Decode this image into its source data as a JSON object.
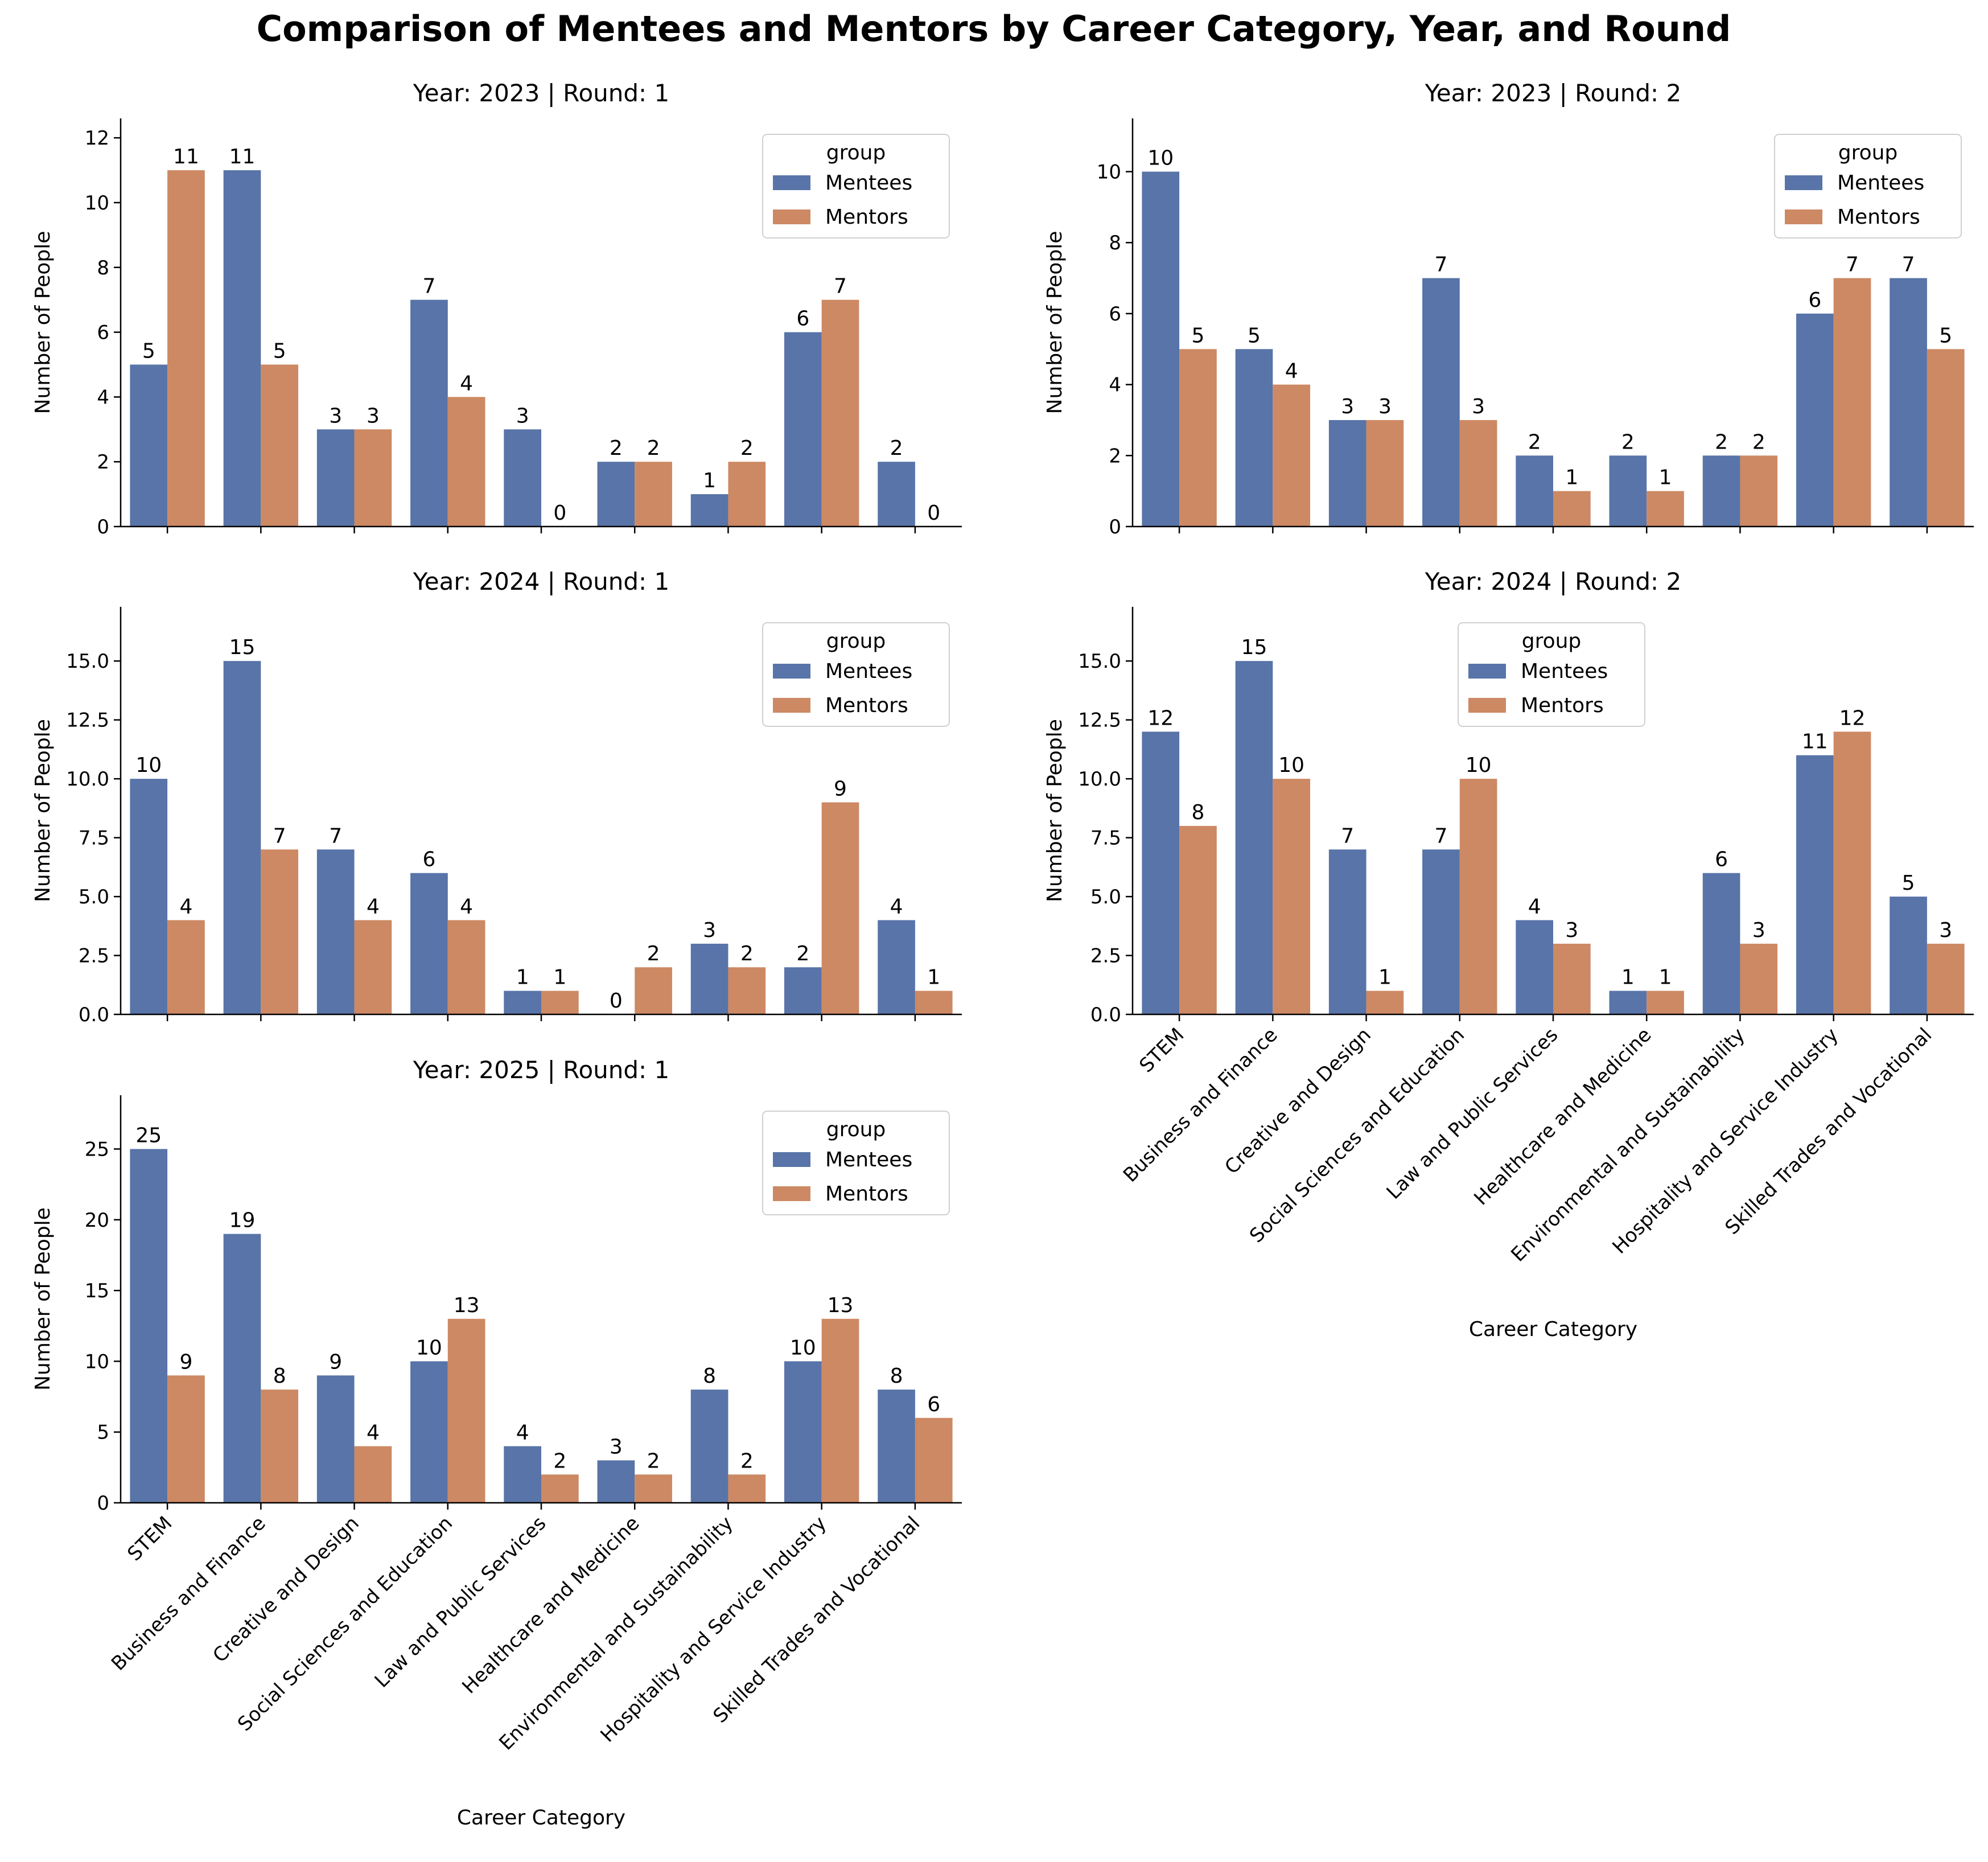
{
  "figure_title": "Comparison of Mentees and Mentors by Career Category, Year, and Round",
  "colors": {
    "Mentees": "#5874a8",
    "Mentors": "#cd8963"
  },
  "chart_data": [
    {
      "type": "bar",
      "title": "Year: 2023 | Round: 1",
      "ylabel": "Number of People",
      "xlabel": "",
      "ylim": [
        0,
        12.6
      ],
      "yticks": [
        "0",
        "2",
        "4",
        "6",
        "8",
        "10",
        "12"
      ],
      "legend": {
        "title": "group",
        "placement": "upper right"
      },
      "categories": [
        "STEM",
        "Business and Finance",
        "Creative and Design",
        "Social Sciences and Education",
        "Law and Public Services",
        "Healthcare and Medicine",
        "Environmental and Sustainability",
        "Hospitality and Service Industry",
        "Skilled Trades and Vocational"
      ],
      "show_category_labels": false,
      "series": [
        {
          "name": "Mentees",
          "values": [
            5,
            11,
            3,
            7,
            3,
            2,
            1,
            6,
            2
          ]
        },
        {
          "name": "Mentors",
          "values": [
            11,
            5,
            3,
            4,
            0,
            2,
            2,
            7,
            0
          ]
        }
      ]
    },
    {
      "type": "bar",
      "title": "Year: 2023 | Round: 2",
      "ylabel": "Number of People",
      "xlabel": "",
      "ylim": [
        0,
        11.5
      ],
      "yticks": [
        "0",
        "2",
        "4",
        "6",
        "8",
        "10"
      ],
      "legend": {
        "title": "group",
        "placement": "upper right"
      },
      "categories": [
        "STEM",
        "Business and Finance",
        "Creative and Design",
        "Social Sciences and Education",
        "Law and Public Services",
        "Healthcare and Medicine",
        "Environmental and Sustainability",
        "Hospitality and Service Industry",
        "Skilled Trades and Vocational"
      ],
      "show_category_labels": false,
      "series": [
        {
          "name": "Mentees",
          "values": [
            10,
            5,
            3,
            7,
            2,
            2,
            2,
            6,
            7
          ]
        },
        {
          "name": "Mentors",
          "values": [
            5,
            4,
            3,
            3,
            1,
            1,
            2,
            7,
            5
          ]
        }
      ]
    },
    {
      "type": "bar",
      "title": "Year: 2024 | Round: 1",
      "ylabel": "Number of People",
      "xlabel": "",
      "ylim": [
        0,
        17.3
      ],
      "yticks": [
        "0.0",
        "2.5",
        "5.0",
        "7.5",
        "10.0",
        "12.5",
        "15.0"
      ],
      "legend": {
        "title": "group",
        "placement": "upper right"
      },
      "categories": [
        "STEM",
        "Business and Finance",
        "Creative and Design",
        "Social Sciences and Education",
        "Law and Public Services",
        "Healthcare and Medicine",
        "Environmental and Sustainability",
        "Hospitality and Service Industry",
        "Skilled Trades and Vocational"
      ],
      "show_category_labels": false,
      "series": [
        {
          "name": "Mentees",
          "values": [
            10,
            15,
            7,
            6,
            1,
            0,
            3,
            2,
            4
          ]
        },
        {
          "name": "Mentors",
          "values": [
            4,
            7,
            4,
            4,
            1,
            2,
            2,
            9,
            1
          ]
        }
      ]
    },
    {
      "type": "bar",
      "title": "Year: 2024 | Round: 2",
      "ylabel": "Number of People",
      "xlabel": "Career Category",
      "ylim": [
        0,
        17.3
      ],
      "yticks": [
        "0.0",
        "2.5",
        "5.0",
        "7.5",
        "10.0",
        "12.5",
        "15.0"
      ],
      "legend": {
        "title": "group",
        "placement": "upper center"
      },
      "categories": [
        "STEM",
        "Business and Finance",
        "Creative and Design",
        "Social Sciences and Education",
        "Law and Public Services",
        "Healthcare and Medicine",
        "Environmental and Sustainability",
        "Hospitality and Service Industry",
        "Skilled Trades and Vocational"
      ],
      "show_category_labels": true,
      "series": [
        {
          "name": "Mentees",
          "values": [
            12,
            15,
            7,
            7,
            4,
            1,
            6,
            11,
            5
          ]
        },
        {
          "name": "Mentors",
          "values": [
            8,
            10,
            1,
            10,
            3,
            1,
            3,
            12,
            3
          ]
        }
      ]
    },
    {
      "type": "bar",
      "title": "Year: 2025 | Round: 1",
      "ylabel": "Number of People",
      "xlabel": "Career Category",
      "ylim": [
        0,
        28.8
      ],
      "yticks": [
        "0",
        "5",
        "10",
        "15",
        "20",
        "25"
      ],
      "legend": {
        "title": "group",
        "placement": "upper right"
      },
      "categories": [
        "STEM",
        "Business and Finance",
        "Creative and Design",
        "Social Sciences and Education",
        "Law and Public Services",
        "Healthcare and Medicine",
        "Environmental and Sustainability",
        "Hospitality and Service Industry",
        "Skilled Trades and Vocational"
      ],
      "show_category_labels": true,
      "series": [
        {
          "name": "Mentees",
          "values": [
            25,
            19,
            9,
            10,
            4,
            3,
            8,
            10,
            8
          ]
        },
        {
          "name": "Mentors",
          "values": [
            9,
            8,
            4,
            13,
            2,
            2,
            2,
            13,
            6
          ]
        }
      ]
    }
  ]
}
